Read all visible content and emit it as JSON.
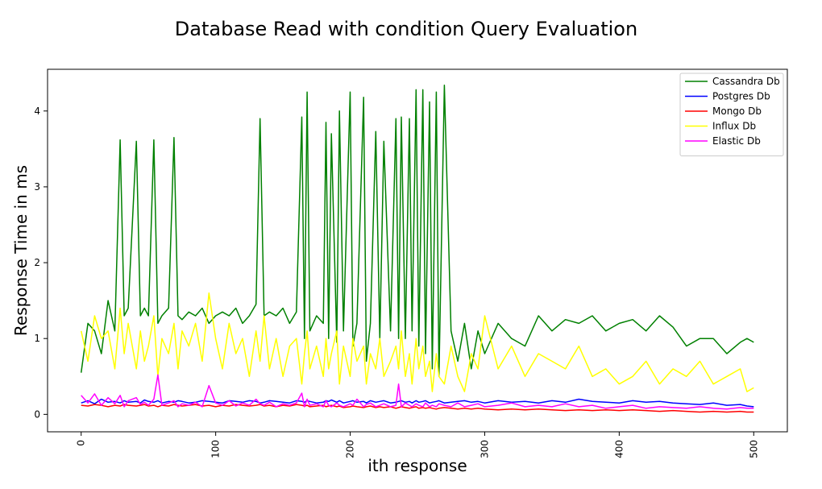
{
  "chart_data": {
    "type": "line",
    "title": "Database Read with condition Query Evaluation",
    "xlabel": "ith response",
    "ylabel": "Response Time in ms",
    "xlim": [
      -25,
      525
    ],
    "ylim": [
      -0.23,
      4.55
    ],
    "xticks": [
      0,
      100,
      200,
      300,
      400,
      500
    ],
    "yticks": [
      0,
      1,
      2,
      3,
      4
    ],
    "xtick_labels": [
      "0",
      "100",
      "200",
      "300",
      "400",
      "500"
    ],
    "ytick_labels": [
      "0",
      "1",
      "2",
      "3",
      "4"
    ],
    "grid": false,
    "legend_position": "top-right",
    "x": [
      0,
      5,
      10,
      15,
      20,
      25,
      29,
      32,
      35,
      41,
      44,
      47,
      50,
      54,
      57,
      60,
      65,
      69,
      72,
      75,
      80,
      85,
      90,
      95,
      100,
      105,
      110,
      115,
      120,
      125,
      130,
      133,
      136,
      140,
      145,
      150,
      155,
      160,
      164,
      166,
      168,
      170,
      175,
      180,
      182,
      184,
      186,
      190,
      192,
      195,
      200,
      202,
      205,
      210,
      212,
      215,
      219,
      222,
      225,
      230,
      234,
      236,
      238,
      241,
      244,
      246,
      249,
      251,
      254,
      256,
      259,
      261,
      264,
      266,
      270,
      275,
      280,
      285,
      290,
      295,
      300,
      310,
      320,
      330,
      340,
      350,
      360,
      370,
      380,
      390,
      400,
      410,
      420,
      430,
      440,
      450,
      460,
      470,
      480,
      490,
      495,
      500
    ],
    "series": [
      {
        "name": "Cassandra Db",
        "color": "#008000",
        "values": [
          0.55,
          1.2,
          1.1,
          0.8,
          1.5,
          1.1,
          3.62,
          1.3,
          1.4,
          3.6,
          1.3,
          1.4,
          1.3,
          3.62,
          1.2,
          1.3,
          1.4,
          3.65,
          1.3,
          1.25,
          1.35,
          1.3,
          1.4,
          1.2,
          1.3,
          1.35,
          1.3,
          1.4,
          1.2,
          1.3,
          1.45,
          3.9,
          1.3,
          1.35,
          1.3,
          1.4,
          1.2,
          1.35,
          3.92,
          1.0,
          4.25,
          1.1,
          1.3,
          1.2,
          3.85,
          1.0,
          3.7,
          0.95,
          4.0,
          1.1,
          4.25,
          0.9,
          1.2,
          4.18,
          0.7,
          1.2,
          3.73,
          1.0,
          3.6,
          1.1,
          3.9,
          1.0,
          3.92,
          1.0,
          3.9,
          1.1,
          4.28,
          0.9,
          4.28,
          0.8,
          4.12,
          0.6,
          4.25,
          0.5,
          4.34,
          1.1,
          0.7,
          1.2,
          0.6,
          1.1,
          0.8,
          1.2,
          1.0,
          0.9,
          1.3,
          1.1,
          1.25,
          1.2,
          1.3,
          1.1,
          1.2,
          1.25,
          1.1,
          1.3,
          1.15,
          0.9,
          1.0,
          1.0,
          0.8,
          0.95,
          1.0,
          0.95
        ]
      },
      {
        "name": "Postgres Db",
        "color": "#0000ff",
        "values": [
          0.15,
          0.18,
          0.14,
          0.2,
          0.16,
          0.17,
          0.15,
          0.18,
          0.16,
          0.17,
          0.15,
          0.19,
          0.17,
          0.16,
          0.18,
          0.15,
          0.17,
          0.16,
          0.18,
          0.17,
          0.15,
          0.16,
          0.18,
          0.17,
          0.16,
          0.15,
          0.18,
          0.17,
          0.16,
          0.18,
          0.17,
          0.15,
          0.16,
          0.18,
          0.17,
          0.16,
          0.15,
          0.18,
          0.17,
          0.16,
          0.18,
          0.17,
          0.15,
          0.16,
          0.18,
          0.17,
          0.19,
          0.16,
          0.18,
          0.15,
          0.17,
          0.18,
          0.16,
          0.17,
          0.15,
          0.18,
          0.16,
          0.17,
          0.18,
          0.15,
          0.16,
          0.17,
          0.18,
          0.16,
          0.17,
          0.15,
          0.18,
          0.16,
          0.17,
          0.18,
          0.15,
          0.16,
          0.17,
          0.18,
          0.15,
          0.16,
          0.17,
          0.18,
          0.16,
          0.17,
          0.15,
          0.18,
          0.16,
          0.17,
          0.15,
          0.18,
          0.16,
          0.2,
          0.17,
          0.16,
          0.15,
          0.18,
          0.16,
          0.17,
          0.15,
          0.14,
          0.13,
          0.15,
          0.12,
          0.13,
          0.11,
          0.1
        ]
      },
      {
        "name": "Mongo Db",
        "color": "#ff0000",
        "values": [
          0.12,
          0.11,
          0.13,
          0.12,
          0.1,
          0.12,
          0.11,
          0.13,
          0.12,
          0.11,
          0.12,
          0.13,
          0.11,
          0.12,
          0.1,
          0.12,
          0.11,
          0.13,
          0.12,
          0.11,
          0.12,
          0.13,
          0.11,
          0.12,
          0.1,
          0.12,
          0.11,
          0.13,
          0.12,
          0.11,
          0.12,
          0.13,
          0.11,
          0.12,
          0.1,
          0.12,
          0.11,
          0.13,
          0.12,
          0.11,
          0.12,
          0.1,
          0.11,
          0.12,
          0.1,
          0.11,
          0.12,
          0.1,
          0.11,
          0.09,
          0.1,
          0.11,
          0.1,
          0.09,
          0.1,
          0.11,
          0.09,
          0.1,
          0.09,
          0.1,
          0.08,
          0.09,
          0.1,
          0.09,
          0.08,
          0.09,
          0.1,
          0.08,
          0.09,
          0.08,
          0.09,
          0.08,
          0.07,
          0.08,
          0.09,
          0.08,
          0.07,
          0.08,
          0.07,
          0.08,
          0.07,
          0.06,
          0.07,
          0.06,
          0.07,
          0.06,
          0.05,
          0.06,
          0.05,
          0.06,
          0.05,
          0.06,
          0.05,
          0.04,
          0.05,
          0.04,
          0.03,
          0.04,
          0.03,
          0.04,
          0.03,
          0.03
        ]
      },
      {
        "name": "Influx Db",
        "color": "#ffff00",
        "values": [
          1.1,
          0.7,
          1.3,
          1.0,
          1.1,
          0.6,
          1.4,
          0.8,
          1.2,
          0.6,
          1.1,
          0.7,
          0.9,
          1.3,
          0.5,
          1.0,
          0.8,
          1.2,
          0.6,
          1.1,
          0.9,
          1.2,
          0.7,
          1.6,
          1.0,
          0.6,
          1.2,
          0.8,
          1.0,
          0.5,
          1.1,
          0.7,
          1.3,
          0.6,
          1.0,
          0.5,
          0.9,
          1.0,
          0.4,
          0.8,
          1.1,
          0.6,
          0.9,
          0.5,
          1.0,
          0.6,
          0.8,
          1.1,
          0.4,
          0.9,
          0.5,
          1.0,
          0.7,
          0.9,
          0.4,
          0.8,
          0.6,
          1.0,
          0.5,
          0.7,
          0.9,
          0.6,
          1.1,
          0.5,
          0.8,
          0.4,
          1.0,
          0.6,
          0.9,
          0.5,
          0.7,
          0.3,
          0.8,
          0.5,
          0.4,
          0.9,
          0.5,
          0.3,
          0.8,
          0.6,
          1.3,
          0.6,
          0.9,
          0.5,
          0.8,
          0.7,
          0.6,
          0.9,
          0.5,
          0.6,
          0.4,
          0.5,
          0.7,
          0.4,
          0.6,
          0.5,
          0.7,
          0.4,
          0.5,
          0.6,
          0.3,
          0.35
        ]
      },
      {
        "name": "Elastic Db",
        "color": "#ff00ff",
        "values": [
          0.25,
          0.15,
          0.27,
          0.12,
          0.22,
          0.14,
          0.25,
          0.1,
          0.18,
          0.22,
          0.13,
          0.16,
          0.12,
          0.2,
          0.52,
          0.12,
          0.15,
          0.18,
          0.1,
          0.14,
          0.12,
          0.16,
          0.1,
          0.38,
          0.15,
          0.12,
          0.18,
          0.11,
          0.15,
          0.12,
          0.2,
          0.14,
          0.12,
          0.16,
          0.1,
          0.14,
          0.12,
          0.15,
          0.28,
          0.1,
          0.2,
          0.12,
          0.14,
          0.1,
          0.18,
          0.12,
          0.1,
          0.15,
          0.12,
          0.1,
          0.14,
          0.12,
          0.2,
          0.1,
          0.13,
          0.15,
          0.1,
          0.12,
          0.14,
          0.1,
          0.12,
          0.4,
          0.1,
          0.15,
          0.12,
          0.1,
          0.14,
          0.12,
          0.1,
          0.15,
          0.1,
          0.12,
          0.1,
          0.14,
          0.12,
          0.1,
          0.15,
          0.1,
          0.12,
          0.14,
          0.1,
          0.12,
          0.15,
          0.1,
          0.12,
          0.1,
          0.14,
          0.1,
          0.12,
          0.08,
          0.1,
          0.12,
          0.08,
          0.1,
          0.09,
          0.08,
          0.1,
          0.08,
          0.07,
          0.09,
          0.08,
          0.08
        ]
      }
    ]
  }
}
